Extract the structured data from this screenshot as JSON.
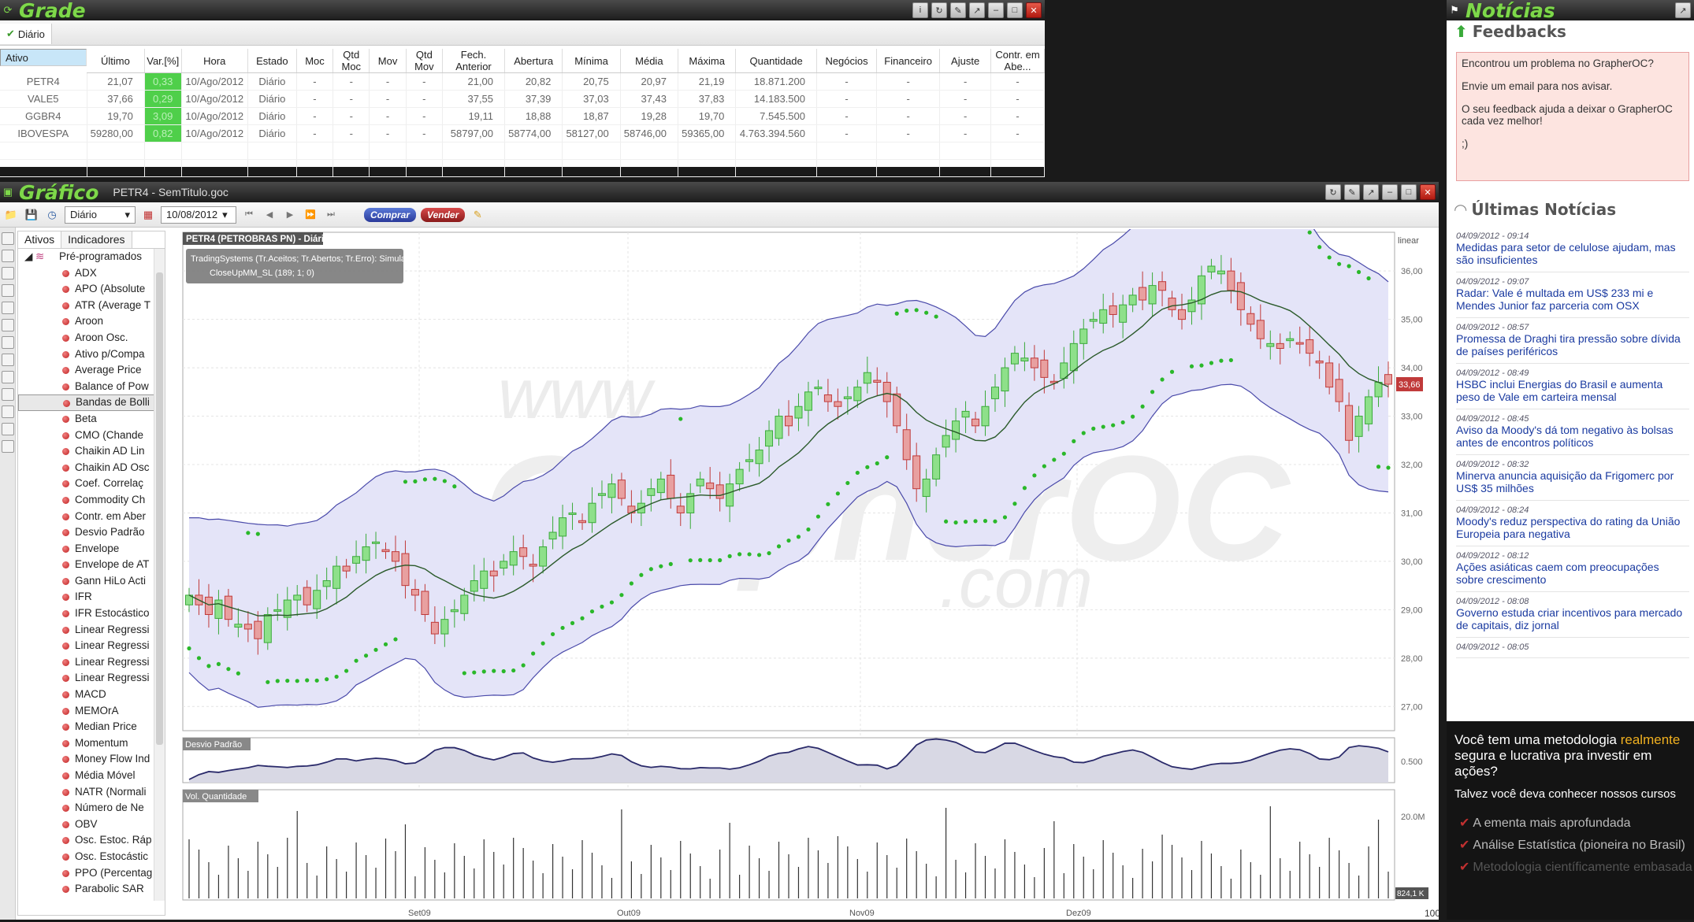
{
  "grade": {
    "title": "Grade",
    "tab": "Diário",
    "columns": [
      "Ativo",
      "Último",
      "Var.[%]",
      "Hora",
      "Estado",
      "Moc",
      "Qtd Moc",
      "Mov",
      "Qtd Mov",
      "Fech. Anterior",
      "Abertura",
      "Mínima",
      "Média",
      "Máxima",
      "Quantidade",
      "Negócios",
      "Financeiro",
      "Ajuste",
      "Contr. em Abe..."
    ],
    "rows": [
      [
        "PETR4",
        "21,07",
        "0,33",
        "10/Ago/2012",
        "Diário",
        "-",
        "-",
        "-",
        "-",
        "21,00",
        "20,82",
        "20,75",
        "20,97",
        "21,19",
        "18.871.200",
        "-",
        "-",
        "-",
        "-"
      ],
      [
        "VALE5",
        "37,66",
        "0,29",
        "10/Ago/2012",
        "Diário",
        "-",
        "-",
        "-",
        "-",
        "37,55",
        "37,39",
        "37,03",
        "37,43",
        "37,83",
        "14.183.500",
        "-",
        "-",
        "-",
        "-"
      ],
      [
        "GGBR4",
        "19,70",
        "3,09",
        "10/Ago/2012",
        "Diário",
        "-",
        "-",
        "-",
        "-",
        "19,11",
        "18,88",
        "18,87",
        "19,28",
        "19,70",
        "7.545.500",
        "-",
        "-",
        "-",
        "-"
      ],
      [
        "IBOVESPA",
        "59280,00",
        "0,82",
        "10/Ago/2012",
        "Diário",
        "-",
        "-",
        "-",
        "-",
        "58797,00",
        "58774,00",
        "58127,00",
        "58746,00",
        "59365,00",
        "4.763.394.560",
        "-",
        "-",
        "-",
        "-"
      ]
    ]
  },
  "grafico": {
    "title": "Gráfico",
    "document": "PETR4 - SemTitulo.goc",
    "period": "Diário",
    "date": "10/08/2012",
    "buy": "Comprar",
    "sell": "Vender",
    "tabs": {
      "ativos": "Ativos",
      "indicadores": "Indicadores"
    },
    "tree_header": "Pré-programados",
    "indicators": [
      "ADX",
      "APO (Absolute",
      "ATR (Average T",
      "Aroon",
      "Aroon Osc.",
      "Ativo p/Compa",
      "Average Price",
      "Balance of Pow",
      "Bandas de Bolli",
      "Beta",
      "CMO (Chande",
      "Chaikin AD Lin",
      "Chaikin AD Osc",
      "Coef. Correlaç",
      "Commodity Ch",
      "Contr. em Aber",
      "Desvio Padrão",
      "Envelope",
      "Envelope de AT",
      "Gann HiLo Acti",
      "IFR",
      "IFR Estocástico",
      "Linear Regressi",
      "Linear Regressi",
      "Linear Regressi",
      "Linear Regressi",
      "MACD",
      "MEMOrA",
      "Median Price",
      "Momentum",
      "Money Flow Ind",
      "Média Móvel",
      "NATR (Normali",
      "Número de Ne",
      "OBV",
      "Osc. Estoc. Ráp",
      "Osc. Estocástic",
      "PPO (Percentag",
      "Parabolic SAR"
    ],
    "chart_title": "PETR4 (PETROBRAS  PN) - Diário",
    "ts_line1": "TradingSystems (Tr.Aceitos; Tr.Abertos; Tr.Erro): Simulação",
    "ts_line2": "CloseUpMM_SL (189; 1; 0)",
    "watermark1": "www.",
    "watermark2": "GrapherOC",
    ".com": ".com",
    "scale": "linear",
    "last_price": "33,66",
    "stddev_label": "Desvio Padrão",
    "stddev_tick": "0.500",
    "vol_label": "Vol. Quantidade",
    "vol_tick": "20.0M",
    "vol_last": "824,1 K",
    "zoom": "100"
  },
  "noticias": {
    "title": "Notícias",
    "feedback_title": "Feedbacks",
    "feedback": [
      "Encontrou um problema no GrapherOC?",
      "Envie um email para nos avisar.",
      "O seu feedback ajuda a deixar o GrapherOC cada vez melhor!",
      ";)"
    ],
    "news_title": "Últimas Notícias",
    "news": [
      {
        "date": "04/09/2012 - 09:14",
        "title": "Medidas para setor de celulose ajudam, mas são insuficientes"
      },
      {
        "date": "04/09/2012 - 09:07",
        "title": "Radar: Vale é multada em US$ 233 mi e Mendes Junior faz parceria com OSX"
      },
      {
        "date": "04/09/2012 - 08:57",
        "title": "Promessa de Draghi tira pressão sobre dívida de países periféricos"
      },
      {
        "date": "04/09/2012 - 08:49",
        "title": "HSBC inclui Energias do Brasil e aumenta peso de Vale em carteira mensal"
      },
      {
        "date": "04/09/2012 - 08:45",
        "title": "Aviso da Moody's dá tom negativo às bolsas antes de encontros políticos"
      },
      {
        "date": "04/09/2012 - 08:32",
        "title": "Minerva anuncia aquisição da Frigomerc por US$ 35 milhões"
      },
      {
        "date": "04/09/2012 - 08:24",
        "title": "Moody's reduz perspectiva do rating da União Europeia para negativa"
      },
      {
        "date": "04/09/2012 - 08:12",
        "title": "Ações asiáticas caem com preocupações sobre crescimento"
      },
      {
        "date": "04/09/2012 - 08:08",
        "title": "Governo estuda criar incentivos para mercado de capitais, diz jornal"
      },
      {
        "date": "04/09/2012 - 08:05",
        "title": ""
      }
    ],
    "promo": {
      "l1a": "Você tem uma metodologia ",
      "l1b": "realmente",
      "l2": "segura e lucrativa pra investir em ações?",
      "l3": "Talvez você deva conhecer nossos cursos",
      "b1": "A ementa mais aprofundada",
      "b2": "Análise Estatística (pioneira no Brasil)",
      "b3": "Metodologia científicamente embasada"
    }
  },
  "chart_data": {
    "type": "candlestick",
    "symbol": "PETR4",
    "y_ticks": [
      "36,00",
      "35,00",
      "34,00",
      "33,00",
      "32,00",
      "31,00",
      "30,00",
      "29,00",
      "28,00",
      "27,00"
    ],
    "x_ticks": [
      "Set09",
      "Out09",
      "Nov09",
      "Dez09"
    ],
    "ylim": [
      26.5,
      36.8
    ],
    "close": [
      29.3,
      29.1,
      28.9,
      29.2,
      28.8,
      28.7,
      28.6,
      28.4,
      28.9,
      29.0,
      29.2,
      29.3,
      29.1,
      29.4,
      29.6,
      29.9,
      29.8,
      30.1,
      30.3,
      30.4,
      30.2,
      30.0,
      29.5,
      29.3,
      28.9,
      28.5,
      28.8,
      29.0,
      29.3,
      29.6,
      29.8,
      29.7,
      30.0,
      30.2,
      30.1,
      29.9,
      30.3,
      30.6,
      30.9,
      31.0,
      30.8,
      31.2,
      31.4,
      31.6,
      31.3,
      31.0,
      31.2,
      31.5,
      31.7,
      31.3,
      31.0,
      31.4,
      31.7,
      31.5,
      31.3,
      31.6,
      31.9,
      32.1,
      32.3,
      32.7,
      33.0,
      32.8,
      33.2,
      33.5,
      33.6,
      33.3,
      33.2,
      33.4,
      33.6,
      33.9,
      33.7,
      33.3,
      32.8,
      32.1,
      31.5,
      31.7,
      32.2,
      32.6,
      32.9,
      33.1,
      32.8,
      33.2,
      33.6,
      34.0,
      34.3,
      34.2,
      34.0,
      33.8,
      33.7,
      34.1,
      34.5,
      34.8,
      35.0,
      35.2,
      35.1,
      35.3,
      35.5,
      35.4,
      35.7,
      35.6,
      35.2,
      35.0,
      35.4,
      35.9,
      36.1,
      36.0,
      35.6,
      35.2,
      34.9,
      34.6,
      34.5,
      34.4,
      34.6,
      34.5,
      34.3,
      34.1,
      33.6,
      33.3,
      32.5,
      33.0,
      33.4,
      33.7,
      33.66
    ]
  }
}
